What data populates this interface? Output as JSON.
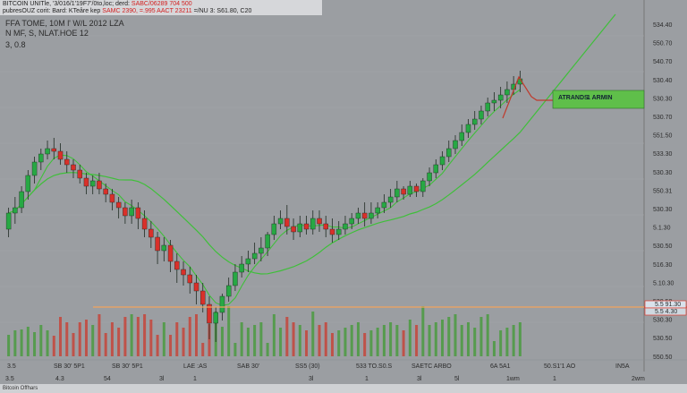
{
  "header": {
    "line1_a": "BITCOIN UNITle, '3/016/1'19F7’/0to,loc; derd: ",
    "line1_b": "SABC/06289 704 500",
    "line2_a": "pubresOUZ corit: Bard: KTeåre kep ",
    "line2_b": "SAMC 2390, =.995 AACT 23211 ",
    "line2_c": " =/NU 3: S61.80, C20"
  },
  "info": {
    "line1": "FFA TOME, 10M l' W/L 2012 LZA",
    "line2": "N MF, S, NLAT.HOE 12",
    "line3": "3, 0.8"
  },
  "footer": {
    "text": "Bitcoin Offhars"
  },
  "colors": {
    "background": "#9b9ea2",
    "up": "#27a844",
    "down": "#d9302a",
    "ma": "#3fbf3a",
    "level": "#f2a35c",
    "price_label": "#e23b2d",
    "legend_bg": "#5fbf4a"
  },
  "chart_data": {
    "type": "candlestick",
    "y_axis_ticks": [
      "534.40",
      "550.70",
      "540.70",
      "530.40",
      "530.30",
      "530.70",
      "551.50",
      "533.30",
      "530.30",
      "550.31",
      "530.30",
      "5.1.30",
      "530.50",
      "516.30",
      "5.10.30",
      "530.50",
      "530.30",
      "530.50",
      "550.50"
    ],
    "price_label_top": "5.5 91.30",
    "price_label_bottom": "5.5 4.30",
    "x_axis_labels_row1": [
      "3.5",
      "SB 30' 5P1",
      "SB 30' 5P1",
      "LAE :AS",
      "SAB 30'",
      "SS5 (30)",
      "533 TO.S0.S",
      "SAETC ARBO",
      "6A 5A1",
      "50.S1'1 AO",
      "IN5A"
    ],
    "x_axis_labels_row2": [
      "3.5",
      "4.3",
      "54",
      "3l",
      "1",
      "3l",
      "1",
      "3l",
      "5l",
      "1wm",
      "1",
      "2wm"
    ],
    "legend": {
      "label": "ATRANDS",
      "value": "1 ARMIN"
    },
    "horizontal_level": 1.29,
    "candles": [
      [
        1.58,
        1.64,
        1.66,
        1.55
      ],
      [
        1.64,
        1.66,
        1.7,
        1.6
      ],
      [
        1.66,
        1.72,
        1.74,
        1.64
      ],
      [
        1.72,
        1.78,
        1.8,
        1.69
      ],
      [
        1.78,
        1.83,
        1.85,
        1.75
      ],
      [
        1.83,
        1.86,
        1.88,
        1.8
      ],
      [
        1.86,
        1.88,
        1.91,
        1.84
      ],
      [
        1.88,
        1.87,
        1.92,
        1.84
      ],
      [
        1.87,
        1.84,
        1.9,
        1.82
      ],
      [
        1.84,
        1.82,
        1.87,
        1.79
      ],
      [
        1.82,
        1.8,
        1.84,
        1.77
      ],
      [
        1.8,
        1.77,
        1.82,
        1.75
      ],
      [
        1.77,
        1.74,
        1.79,
        1.71
      ],
      [
        1.74,
        1.76,
        1.78,
        1.71
      ],
      [
        1.76,
        1.73,
        1.79,
        1.71
      ],
      [
        1.73,
        1.71,
        1.75,
        1.68
      ],
      [
        1.71,
        1.68,
        1.73,
        1.65
      ],
      [
        1.68,
        1.66,
        1.7,
        1.62
      ],
      [
        1.66,
        1.63,
        1.68,
        1.6
      ],
      [
        1.63,
        1.66,
        1.69,
        1.6
      ],
      [
        1.66,
        1.62,
        1.68,
        1.58
      ],
      [
        1.62,
        1.58,
        1.65,
        1.55
      ],
      [
        1.58,
        1.55,
        1.61,
        1.51
      ],
      [
        1.55,
        1.5,
        1.57,
        1.45
      ],
      [
        1.5,
        1.52,
        1.55,
        1.46
      ],
      [
        1.52,
        1.46,
        1.54,
        1.42
      ],
      [
        1.46,
        1.43,
        1.49,
        1.38
      ],
      [
        1.43,
        1.41,
        1.46,
        1.37
      ],
      [
        1.41,
        1.38,
        1.44,
        1.34
      ],
      [
        1.38,
        1.35,
        1.41,
        1.3
      ],
      [
        1.35,
        1.3,
        1.38,
        1.27
      ],
      [
        1.3,
        1.23,
        1.33,
        1.17
      ],
      [
        1.23,
        1.27,
        1.29,
        1.16
      ],
      [
        1.27,
        1.33,
        1.34,
        1.24
      ],
      [
        1.33,
        1.37,
        1.4,
        1.31
      ],
      [
        1.37,
        1.42,
        1.45,
        1.35
      ],
      [
        1.42,
        1.45,
        1.48,
        1.4
      ],
      [
        1.45,
        1.47,
        1.5,
        1.42
      ],
      [
        1.47,
        1.49,
        1.53,
        1.45
      ],
      [
        1.49,
        1.51,
        1.55,
        1.46
      ],
      [
        1.51,
        1.56,
        1.57,
        1.48
      ],
      [
        1.56,
        1.6,
        1.63,
        1.54
      ],
      [
        1.6,
        1.62,
        1.65,
        1.58
      ],
      [
        1.62,
        1.59,
        1.67,
        1.56
      ],
      [
        1.59,
        1.57,
        1.62,
        1.54
      ],
      [
        1.57,
        1.6,
        1.63,
        1.55
      ],
      [
        1.6,
        1.58,
        1.63,
        1.56
      ],
      [
        1.58,
        1.62,
        1.65,
        1.56
      ],
      [
        1.62,
        1.6,
        1.65,
        1.57
      ],
      [
        1.6,
        1.58,
        1.63,
        1.55
      ],
      [
        1.58,
        1.56,
        1.62,
        1.53
      ],
      [
        1.56,
        1.58,
        1.61,
        1.54
      ],
      [
        1.58,
        1.6,
        1.63,
        1.56
      ],
      [
        1.6,
        1.62,
        1.64,
        1.58
      ],
      [
        1.62,
        1.64,
        1.66,
        1.6
      ],
      [
        1.64,
        1.62,
        1.68,
        1.59
      ],
      [
        1.62,
        1.64,
        1.68,
        1.6
      ],
      [
        1.64,
        1.66,
        1.68,
        1.62
      ],
      [
        1.66,
        1.68,
        1.71,
        1.64
      ],
      [
        1.68,
        1.7,
        1.73,
        1.66
      ],
      [
        1.7,
        1.73,
        1.76,
        1.68
      ],
      [
        1.73,
        1.71,
        1.74,
        1.69
      ],
      [
        1.71,
        1.74,
        1.76,
        1.7
      ],
      [
        1.74,
        1.72,
        1.75,
        1.7
      ],
      [
        1.72,
        1.76,
        1.77,
        1.7
      ],
      [
        1.76,
        1.79,
        1.81,
        1.74
      ],
      [
        1.79,
        1.82,
        1.84,
        1.77
      ],
      [
        1.82,
        1.85,
        1.87,
        1.8
      ],
      [
        1.85,
        1.88,
        1.91,
        1.83
      ],
      [
        1.88,
        1.91,
        1.93,
        1.86
      ],
      [
        1.91,
        1.94,
        1.97,
        1.89
      ],
      [
        1.94,
        1.97,
        1.99,
        1.92
      ],
      [
        1.97,
        1.99,
        2.02,
        1.95
      ],
      [
        1.99,
        2.02,
        2.04,
        1.97
      ],
      [
        2.02,
        2.05,
        2.07,
        2.0
      ],
      [
        2.05,
        2.06,
        2.09,
        2.02
      ],
      [
        2.06,
        2.08,
        2.11,
        2.03
      ],
      [
        2.08,
        2.1,
        2.13,
        2.05
      ],
      [
        2.1,
        2.12,
        2.15,
        2.08
      ],
      [
        2.12,
        2.14,
        2.17,
        2.09
      ]
    ]
  }
}
